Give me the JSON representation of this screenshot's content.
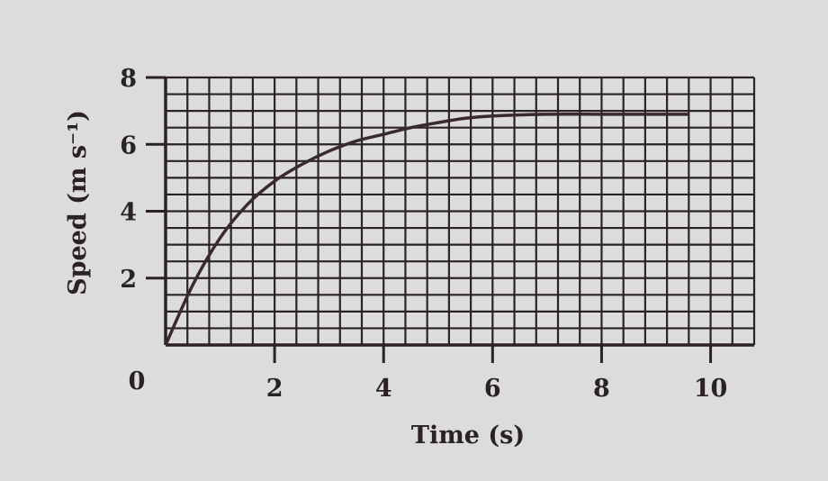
{
  "chart_data": {
    "type": "line",
    "title": "",
    "xlabel": "Time (s)",
    "ylabel": "Speed (m s⁻¹)",
    "xlim": [
      0,
      10.8
    ],
    "ylim": [
      0,
      8
    ],
    "x_ticks": [
      0,
      2,
      4,
      6,
      8,
      10
    ],
    "y_ticks": [
      2,
      4,
      6,
      8
    ],
    "x_tick_labels": [
      "0",
      "2",
      "4",
      "6",
      "8",
      "10"
    ],
    "y_tick_labels": [
      "2",
      "4",
      "6",
      "8"
    ],
    "grid": true,
    "grid_minor_x": 0.4,
    "grid_minor_y": 0.5,
    "series": [
      {
        "x": [
          0,
          0.5,
          1,
          1.5,
          2,
          2.5,
          3,
          3.5,
          4,
          4.5,
          5,
          5.5,
          6,
          7,
          8,
          9,
          9.6
        ],
        "y": [
          0,
          1.8,
          3.2,
          4.2,
          4.9,
          5.4,
          5.8,
          6.1,
          6.3,
          6.5,
          6.65,
          6.78,
          6.85,
          6.9,
          6.9,
          6.9,
          6.9
        ]
      }
    ],
    "colors": {
      "line": "#3a2a2e",
      "grid": "#2a2226",
      "background": "#dcdcda"
    }
  }
}
